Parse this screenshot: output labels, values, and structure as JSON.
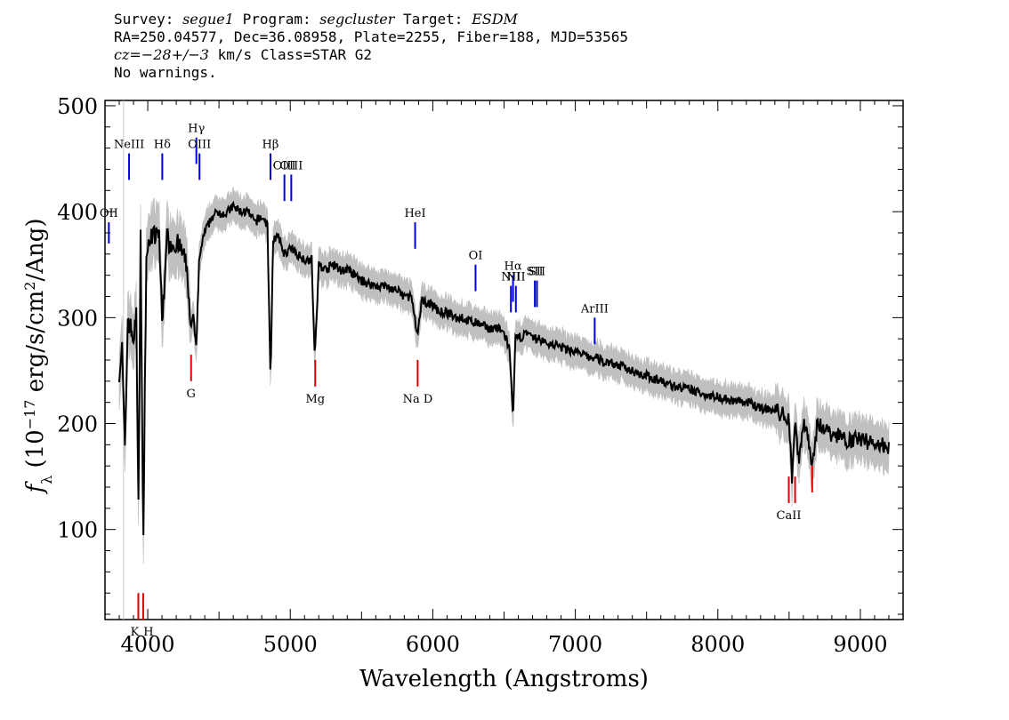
{
  "header": {
    "survey_label": "Survey:",
    "survey": "segue1",
    "program_label": "Program:",
    "program": "segcluster",
    "target_label": "Target:",
    "target": "ESDM",
    "line2": "RA=250.04577, Dec=36.08958, Plate=2255, Fiber=188, MJD=53565",
    "cz_label": "cz=",
    "cz_value": "−28+/−3",
    "cz_rest": " km/s Class=STAR G2",
    "line4": "No warnings."
  },
  "chart_data": {
    "type": "line",
    "title": "",
    "xlabel": "Wavelength (Angstroms)",
    "ylabel_prefix": "f",
    "ylabel_sub": "λ",
    "ylabel_pre": " (10",
    "ylabel_exp": "−17",
    "ylabel_mid": " erg/s/cm",
    "ylabel_exp2": "2",
    "ylabel_post": "/Ang)",
    "xlim": [
      3700,
      9300
    ],
    "ylim": [
      15,
      505
    ],
    "xticks": [
      4000,
      5000,
      6000,
      7000,
      8000,
      9000
    ],
    "xtick_labels": [
      "4000",
      "5000",
      "6000",
      "7000",
      "8000",
      "9000"
    ],
    "yticks": [
      100,
      200,
      300,
      400,
      500
    ],
    "ytick_labels": [
      "100",
      "200",
      "300",
      "400",
      "500"
    ],
    "colors": {
      "spectrum": "#000000",
      "error": "#c0c0c0",
      "emission": "#0000dd",
      "absorption": "#dd0000"
    },
    "series": [
      {
        "x": [
          3800,
          3820,
          3840,
          3860,
          3880,
          3900,
          3920,
          3935,
          3950,
          3968,
          3990,
          4000,
          4020,
          4050,
          4080,
          4102,
          4130,
          4160,
          4200,
          4250,
          4280,
          4300,
          4320,
          4340,
          4360,
          4380,
          4400,
          4450,
          4500,
          4550,
          4600,
          4650,
          4700,
          4750,
          4800,
          4840,
          4861,
          4880,
          4920,
          4960,
          5000,
          5050,
          5100,
          5150,
          5172,
          5200,
          5250,
          5300,
          5350,
          5400,
          5450,
          5500,
          5550,
          5600,
          5650,
          5700,
          5750,
          5800,
          5850,
          5893,
          5920,
          5950,
          6000,
          6050,
          6100,
          6150,
          6200,
          6250,
          6300,
          6350,
          6400,
          6450,
          6500,
          6540,
          6563,
          6580,
          6620,
          6650,
          6700,
          6750,
          6800,
          6850,
          6900,
          6950,
          7000,
          7050,
          7100,
          7150,
          7200,
          7250,
          7300,
          7400,
          7500,
          7600,
          7700,
          7800,
          7900,
          8000,
          8100,
          8200,
          8300,
          8400,
          8498,
          8520,
          8542,
          8570,
          8600,
          8662,
          8700,
          8750,
          8800,
          8850,
          8900,
          8950,
          9000,
          9050,
          9100,
          9150,
          9200
        ],
        "values": [
          250,
          270,
          170,
          300,
          290,
          280,
          300,
          120,
          380,
          80,
          360,
          360,
          380,
          375,
          380,
          290,
          375,
          370,
          370,
          360,
          340,
          290,
          300,
          270,
          350,
          370,
          380,
          395,
          400,
          398,
          405,
          400,
          400,
          390,
          395,
          388,
          240,
          375,
          375,
          360,
          365,
          360,
          355,
          355,
          260,
          350,
          345,
          350,
          345,
          345,
          340,
          335,
          332,
          330,
          330,
          328,
          325,
          320,
          320,
          280,
          315,
          315,
          312,
          305,
          305,
          300,
          300,
          297,
          295,
          292,
          290,
          290,
          285,
          270,
          200,
          280,
          282,
          285,
          280,
          280,
          275,
          275,
          272,
          270,
          268,
          265,
          262,
          262,
          258,
          258,
          255,
          250,
          245,
          240,
          235,
          232,
          228,
          225,
          222,
          220,
          215,
          212,
          205,
          150,
          205,
          160,
          205,
          165,
          200,
          195,
          190,
          188,
          185,
          185,
          185,
          183,
          182,
          180,
          178
        ]
      }
    ],
    "emission_lines": [
      {
        "label": "OII",
        "x": 3727,
        "y1": 390,
        "y2": 370
      },
      {
        "label": "NeIII",
        "x": 3869,
        "y1": 455,
        "y2": 430
      },
      {
        "label": "Hδ",
        "x": 4102,
        "y1": 455,
        "y2": 430
      },
      {
        "label": "Hγ",
        "x": 4341,
        "y1": 470,
        "y2": 445
      },
      {
        "label": "OIII",
        "x": 4363,
        "y1": 455,
        "y2": 430
      },
      {
        "label": "Hβ",
        "x": 4861,
        "y1": 455,
        "y2": 430
      },
      {
        "label": "OIII",
        "x": 4959,
        "y1": 435,
        "y2": 410
      },
      {
        "label": "OIII",
        "x": 5007,
        "y1": 435,
        "y2": 410
      },
      {
        "label": "HeI",
        "x": 5876,
        "y1": 390,
        "y2": 365
      },
      {
        "label": "OI",
        "x": 6300,
        "y1": 350,
        "y2": 325
      },
      {
        "label": "NII",
        "x": 6548,
        "y1": 330,
        "y2": 305
      },
      {
        "label": "Hα",
        "x": 6563,
        "y1": 340,
        "y2": 315
      },
      {
        "label": "NII",
        "x": 6583,
        "y1": 330,
        "y2": 305
      },
      {
        "label": "SII",
        "x": 6716,
        "y1": 335,
        "y2": 310
      },
      {
        "label": "SII",
        "x": 6731,
        "y1": 335,
        "y2": 310
      },
      {
        "label": "ArIII",
        "x": 7136,
        "y1": 300,
        "y2": 275
      }
    ],
    "absorption_lines": [
      {
        "label": "K",
        "x": 3934,
        "y1": 40,
        "y2": 15
      },
      {
        "label": "H",
        "x": 3968,
        "y1": 40,
        "y2": 15
      },
      {
        "label": "G",
        "x": 4304,
        "y1": 265,
        "y2": 240
      },
      {
        "label": "Mg",
        "x": 5175,
        "y1": 260,
        "y2": 235
      },
      {
        "label": "Na D",
        "x": 5894,
        "y1": 260,
        "y2": 235
      },
      {
        "label": "CaII",
        "x": 8498,
        "y1": 150,
        "y2": 125
      },
      {
        "label": "CaII",
        "x": 8542,
        "y1": 150,
        "y2": 125
      },
      {
        "label": "CaII",
        "x": 8662,
        "y1": 160,
        "y2": 135
      }
    ]
  }
}
